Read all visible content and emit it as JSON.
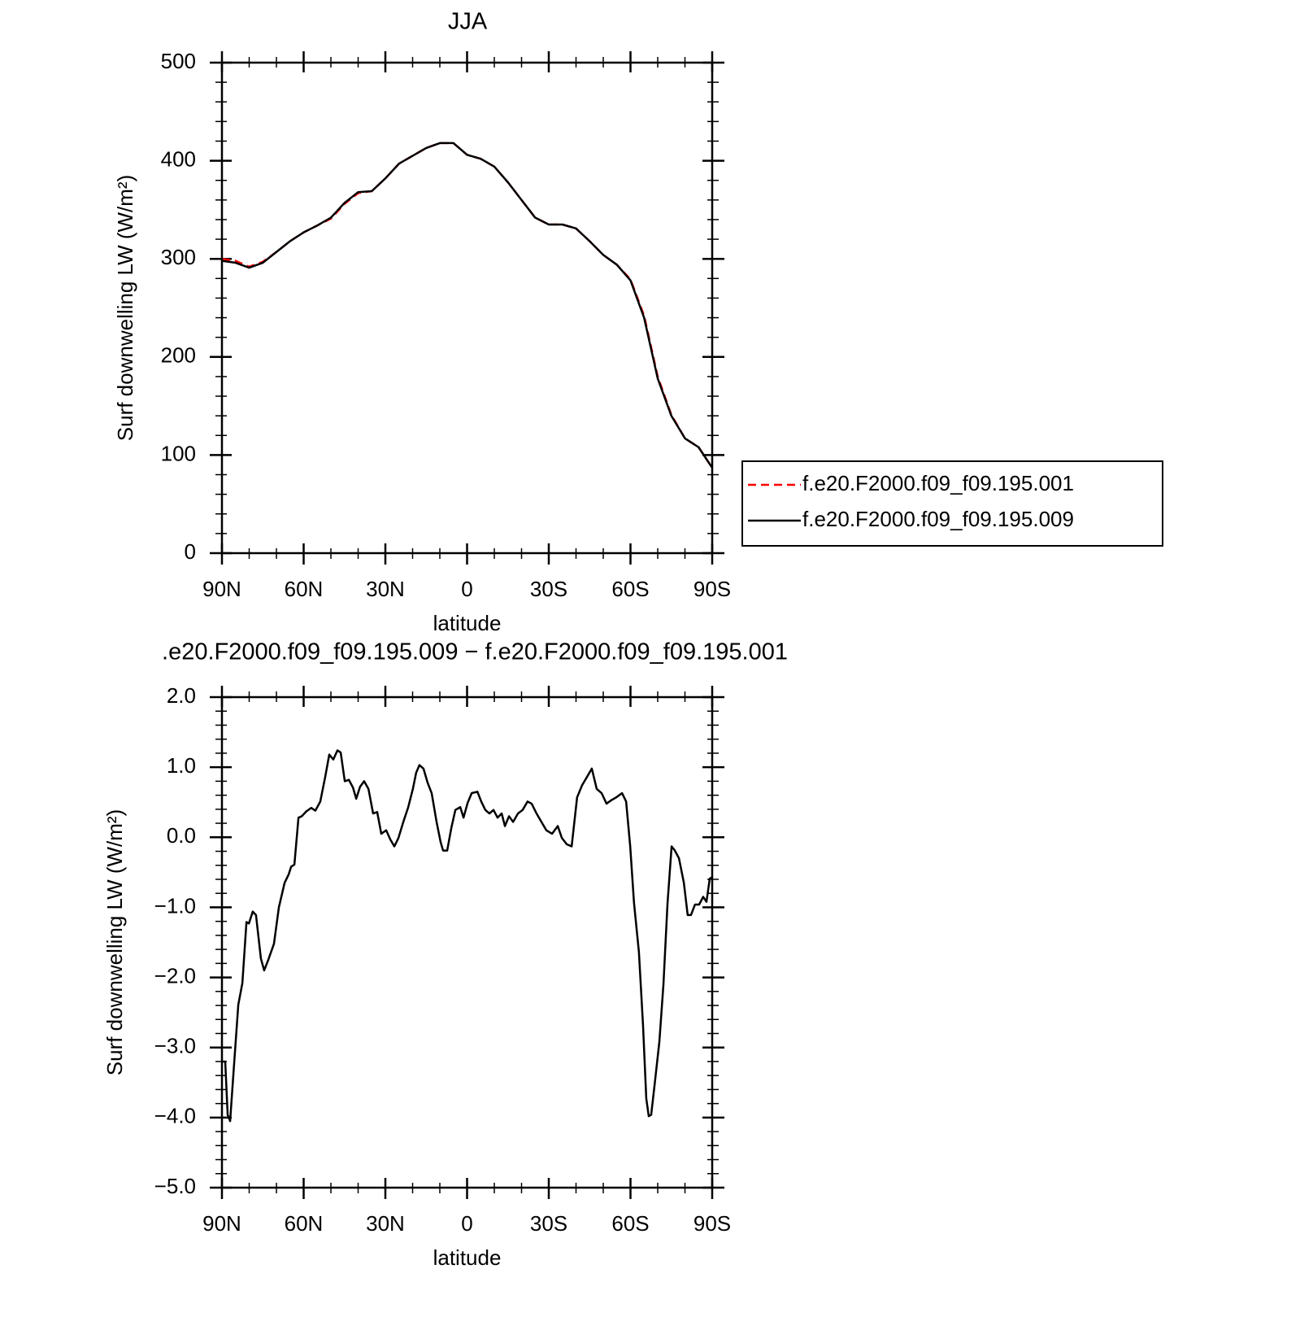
{
  "chart_data": [
    {
      "type": "line",
      "title": "JJA",
      "x_label": "latitude",
      "y_label": "Surf downwelling LW (W/m²)",
      "xlim": [
        90,
        -90
      ],
      "xticks": [
        {
          "value": 90,
          "label": "90N"
        },
        {
          "value": 60,
          "label": "60N"
        },
        {
          "value": 30,
          "label": "30N"
        },
        {
          "value": 0,
          "label": "0"
        },
        {
          "value": -30,
          "label": "30S"
        },
        {
          "value": -60,
          "label": "60S"
        },
        {
          "value": -90,
          "label": "90S"
        }
      ],
      "xminorticks": [
        80,
        70,
        50,
        40,
        20,
        10,
        -10,
        -20,
        -40,
        -50,
        -70,
        -80
      ],
      "ylim": [
        0,
        500
      ],
      "yticks": [
        0,
        100,
        200,
        300,
        400,
        500
      ],
      "yminorticks": [
        20,
        40,
        60,
        80,
        120,
        140,
        160,
        180,
        220,
        240,
        260,
        280,
        320,
        340,
        360,
        380,
        420,
        440,
        460,
        480
      ],
      "legend": "outside-right",
      "x": [
        90,
        85,
        80,
        75,
        70,
        65,
        60,
        55,
        50,
        45,
        40,
        35,
        30,
        25,
        20,
        15,
        10,
        5,
        0,
        -5,
        -10,
        -15,
        -20,
        -25,
        -30,
        -35,
        -40,
        -45,
        -50,
        -55,
        -60,
        -65,
        -70,
        -75,
        -80,
        -85,
        -90
      ],
      "series": [
        {
          "name": "f.e20.F2000.f09_f09.195.001",
          "color": "#ff0000",
          "line_style": "dashed",
          "values": [
            300,
            298,
            292,
            297,
            307,
            318,
            327,
            334,
            341,
            356,
            367,
            369,
            382,
            397,
            405,
            413,
            418,
            418,
            406,
            402,
            394,
            378,
            360,
            342,
            335,
            335,
            331,
            318,
            304,
            294,
            279,
            242,
            180,
            141,
            117,
            108,
            87
          ]
        },
        {
          "name": "f.e20.F2000.f09_f09.195.009",
          "color": "#000000",
          "line_style": "solid",
          "values": [
            298,
            296,
            291,
            296,
            307,
            318,
            327,
            334,
            342,
            357,
            368,
            369,
            382,
            397,
            405,
            413,
            418,
            418,
            406,
            402,
            394,
            378,
            360,
            342,
            335,
            335,
            331,
            318,
            304,
            294,
            278,
            240,
            178,
            140,
            117,
            108,
            87
          ]
        }
      ]
    },
    {
      "type": "line",
      "title": ".e20.F2000.f09_f09.195.009 − f.e20.F2000.f09_f09.195.001",
      "x_label": "latitude",
      "y_label": "Surf downwelling LW (W/m²)",
      "xlim": [
        90,
        -90
      ],
      "xticks": [
        {
          "value": 90,
          "label": "90N"
        },
        {
          "value": 60,
          "label": "60N"
        },
        {
          "value": 30,
          "label": "30N"
        },
        {
          "value": 0,
          "label": "0"
        },
        {
          "value": -30,
          "label": "30S"
        },
        {
          "value": -60,
          "label": "60S"
        },
        {
          "value": -90,
          "label": "90S"
        }
      ],
      "xminorticks": [
        80,
        70,
        50,
        40,
        20,
        10,
        -10,
        -20,
        -40,
        -50,
        -70,
        -80
      ],
      "ylim": [
        -5,
        2
      ],
      "yticks": [
        {
          "value": -5,
          "label": "−5.0"
        },
        {
          "value": -4,
          "label": "−4.0"
        },
        {
          "value": -3,
          "label": "−3.0"
        },
        {
          "value": -2,
          "label": "−2.0"
        },
        {
          "value": -1,
          "label": "−1.0"
        },
        {
          "value": 0,
          "label": "0.0"
        },
        {
          "value": 1,
          "label": "1.0"
        },
        {
          "value": 2,
          "label": "2.0"
        }
      ],
      "yminorticks": [
        -4.8,
        -4.6,
        -4.4,
        -4.2,
        -3.8,
        -3.6,
        -3.4,
        -3.2,
        -2.8,
        -2.6,
        -2.4,
        -2.2,
        -1.8,
        -1.6,
        -1.4,
        -1.2,
        -0.8,
        -0.6,
        -0.4,
        -0.2,
        0.2,
        0.4,
        0.6,
        0.8,
        1.2,
        1.4,
        1.6,
        1.8
      ],
      "x": [
        90,
        88.8,
        87.9,
        87,
        85.8,
        84,
        82.5,
        81,
        80.1,
        78.7,
        77.5,
        75.7,
        74.5,
        73,
        70.9,
        69.1,
        67,
        65.5,
        64.6,
        63.4,
        61.9,
        60.7,
        59,
        57.2,
        55.7,
        53.9,
        52.1,
        50.6,
        49.1,
        47.6,
        46.4,
        44.9,
        43.4,
        41.9,
        40.7,
        39.3,
        37.8,
        36.2,
        34.5,
        33,
        31.5,
        29.7,
        28.2,
        26.7,
        25.2,
        23.4,
        21.6,
        19.9,
        18.7,
        17.5,
        16,
        14.5,
        13,
        11.2,
        9.7,
        8.8,
        7.3,
        5.8,
        4.3,
        2.5,
        1.3,
        -0.2,
        -1.7,
        -3.8,
        -5.2,
        -6.7,
        -8.2,
        -9.7,
        -11.2,
        -12.7,
        -13.9,
        -15.4,
        -16.9,
        -18.7,
        -20.4,
        -22.2,
        -23.7,
        -25.5,
        -27.3,
        -29.1,
        -31.2,
        -33.3,
        -34.8,
        -36.6,
        -38.4,
        -40.4,
        -42.2,
        -44,
        -45.8,
        -47.6,
        -49.4,
        -51.2,
        -53,
        -54.8,
        -56.9,
        -58.4,
        -59.9,
        -61.3,
        -63.1,
        -64.6,
        -65.8,
        -66.7,
        -67.6,
        -68.8,
        -70.6,
        -72.1,
        -73.6,
        -75.1,
        -76.3,
        -77.8,
        -79.6,
        -81,
        -82.2,
        -83.7,
        -85.2,
        -86.7,
        -87.9,
        -89.1,
        -90
      ],
      "series": [
        {
          "name": null,
          "color": "#000000",
          "line_style": "solid",
          "values": [
            -3.2,
            -3.2,
            -3.96,
            -4.05,
            -3.38,
            -2.39,
            -2.08,
            -1.21,
            -1.23,
            -1.06,
            -1.11,
            -1.73,
            -1.9,
            -1.75,
            -1.52,
            -1.0,
            -0.65,
            -0.53,
            -0.42,
            -0.39,
            0.28,
            0.3,
            0.37,
            0.42,
            0.38,
            0.51,
            0.86,
            1.18,
            1.11,
            1.24,
            1.21,
            0.8,
            0.82,
            0.71,
            0.55,
            0.72,
            0.8,
            0.69,
            0.34,
            0.36,
            0.05,
            0.1,
            -0.03,
            -0.13,
            -0.01,
            0.22,
            0.43,
            0.69,
            0.92,
            1.03,
            0.98,
            0.78,
            0.63,
            0.22,
            -0.07,
            -0.19,
            -0.19,
            0.13,
            0.39,
            0.43,
            0.28,
            0.49,
            0.63,
            0.65,
            0.51,
            0.39,
            0.34,
            0.39,
            0.28,
            0.34,
            0.16,
            0.3,
            0.22,
            0.34,
            0.39,
            0.51,
            0.48,
            0.34,
            0.22,
            0.1,
            0.05,
            0.16,
            -0.01,
            -0.1,
            -0.13,
            0.57,
            0.74,
            0.86,
            0.98,
            0.69,
            0.63,
            0.48,
            0.53,
            0.57,
            0.63,
            0.51,
            -0.13,
            -0.94,
            -1.64,
            -2.68,
            -3.73,
            -3.98,
            -3.96,
            -3.55,
            -2.92,
            -2.1,
            -0.94,
            -0.13,
            -0.19,
            -0.3,
            -0.65,
            -1.11,
            -1.11,
            -0.96,
            -0.96,
            -0.85,
            -0.92,
            -0.59,
            -0.57
          ]
        }
      ]
    }
  ]
}
